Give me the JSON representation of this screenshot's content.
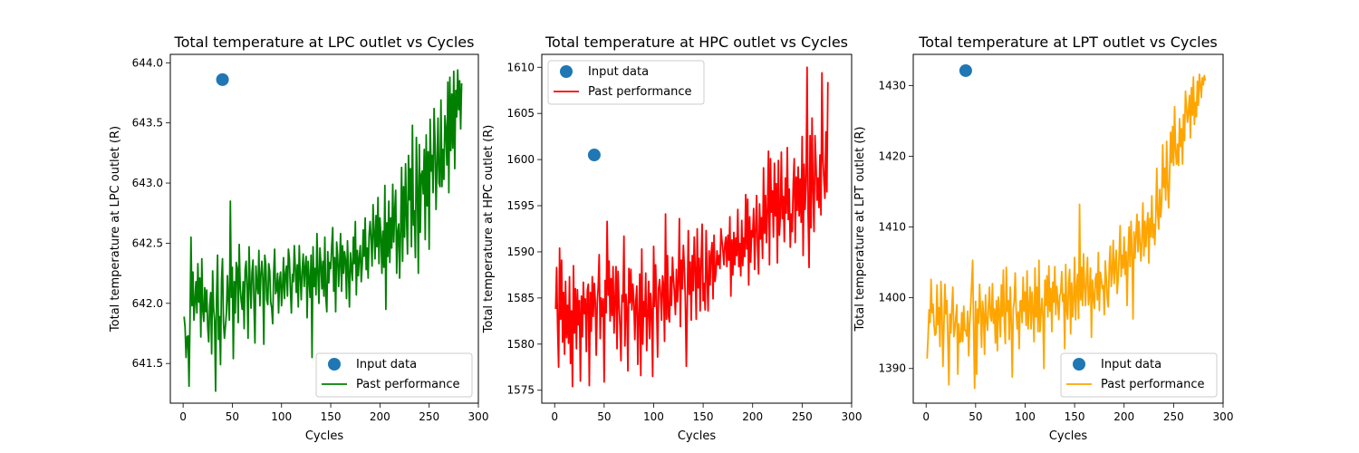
{
  "chart_data": [
    {
      "type": "line",
      "title": "Total temperature at LPC outlet vs Cycles",
      "xlabel": "Cycles",
      "ylabel": "Total temperature at LPC outlet (R)",
      "xlim": [
        -13,
        300
      ],
      "ylim": [
        641.17,
        644.07
      ],
      "xticks": [
        0,
        50,
        100,
        150,
        200,
        250,
        300
      ],
      "yticks": [
        641.5,
        642.0,
        642.5,
        643.0,
        643.5,
        644.0
      ],
      "ytick_labels": [
        "641.5",
        "642.0",
        "642.5",
        "643.0",
        "643.5",
        "644.0"
      ],
      "legend_position": "lower-right",
      "input_point": {
        "name": "Input data",
        "x": 40,
        "y": 643.86,
        "color": "#1f77b4"
      },
      "series": {
        "name": "Past performance",
        "color": "#008000",
        "x_start": 1,
        "x_step": 1,
        "values": [
          641.89,
          641.8,
          641.55,
          641.72,
          641.73,
          641.31,
          641.87,
          642.55,
          641.98,
          642.26,
          641.86,
          642.02,
          642.18,
          641.92,
          642.33,
          642.01,
          642.21,
          641.72,
          642.37,
          641.94,
          641.85,
          642.13,
          641.93,
          642.11,
          641.8,
          641.68,
          641.98,
          642.09,
          641.58,
          642.27,
          641.96,
          641.86,
          641.27,
          642.06,
          642.4,
          641.7,
          641.89,
          641.49,
          642.19,
          642.37,
          641.84,
          641.71,
          641.81,
          641.92,
          642.23,
          642.03,
          641.86,
          642.85,
          642.05,
          642.3,
          641.54,
          642.18,
          641.92,
          642.34,
          642.29,
          641.84,
          642.49,
          642.14,
          642.02,
          641.95,
          642.18,
          641.79,
          642.28,
          642.35,
          642.13,
          641.71,
          642.47,
          642.17,
          641.96,
          642.26,
          642.36,
          641.99,
          641.67,
          642.31,
          642.15,
          642.08,
          642.44,
          641.98,
          642.23,
          642.35,
          642.21,
          641.66,
          642.4,
          642.32,
          642.03,
          641.99,
          642.33,
          642.27,
          642.01,
          641.96,
          641.83,
          642.25,
          642.45,
          642.08,
          642.11,
          642.25,
          641.92,
          642.19,
          642.26,
          641.98,
          642.13,
          642.38,
          642.04,
          642.24,
          642.31,
          642.06,
          642.45,
          642.37,
          642.12,
          641.92,
          642.24,
          642.18,
          642.48,
          642.29,
          642.09,
          642.32,
          641.97,
          642.48,
          642.23,
          642.03,
          642.28,
          642.41,
          642.14,
          642.3,
          642.39,
          641.88,
          642.35,
          642.2,
          642.05,
          642.4,
          641.55,
          642.47,
          642.14,
          642.29,
          642.07,
          642.58,
          642.25,
          642.0,
          642.46,
          642.33,
          642.12,
          642.35,
          642.06,
          642.55,
          642.05,
          641.93,
          642.43,
          642.17,
          642.34,
          642.29,
          642.48,
          642.63,
          642.1,
          642.38,
          641.93,
          642.51,
          642.4,
          642.14,
          642.33,
          642.58,
          642.1,
          642.48,
          642.25,
          642.43,
          642.36,
          642.04,
          642.52,
          642.26,
          641.97,
          642.42,
          642.3,
          642.19,
          642.55,
          642.33,
          642.68,
          642.07,
          642.44,
          642.23,
          642.38,
          642.48,
          642.18,
          642.32,
          642.61,
          642.39,
          642.71,
          642.28,
          642.46,
          642.21,
          642.57,
          642.68,
          642.53,
          642.31,
          642.82,
          642.59,
          642.37,
          642.73,
          642.47,
          642.88,
          642.33,
          642.71,
          642.56,
          642.25,
          642.6,
          642.3,
          642.98,
          641.95,
          642.67,
          642.39,
          642.85,
          642.34,
          642.71,
          642.46,
          642.99,
          642.51,
          642.77,
          642.94,
          642.25,
          642.59,
          642.66,
          642.21,
          642.61,
          643.13,
          642.35,
          642.97,
          642.55,
          643.16,
          642.72,
          642.41,
          643.23,
          642.86,
          643.12,
          642.47,
          643.48,
          642.65,
          642.77,
          642.38,
          643.38,
          642.95,
          642.25,
          643.32,
          642.59,
          643.07,
          643.1,
          642.91,
          643.28,
          642.53,
          643.4,
          642.81,
          643.26,
          642.45,
          643.53,
          643.1,
          643.23,
          642.92,
          643.62,
          643.33,
          642.78,
          643.15,
          643.54,
          643.0,
          642.97,
          643.69,
          642.97,
          643.28,
          643.03,
          643.56,
          643.44,
          643.15,
          643.84,
          642.92,
          643.88,
          643.27,
          643.74,
          643.29,
          643.93,
          643.12,
          643.77,
          643.55,
          643.94,
          643.61,
          643.85,
          643.45,
          643.83
        ]
      }
    },
    {
      "type": "line",
      "title": "Total temperature at HPC outlet vs Cycles",
      "xlabel": "Cycles",
      "ylabel": "Total temperature at HPC outlet (R)",
      "xlim": [
        -13,
        300
      ],
      "ylim": [
        1573.6,
        1611.4
      ],
      "xticks": [
        0,
        50,
        100,
        150,
        200,
        250,
        300
      ],
      "yticks": [
        1575,
        1580,
        1585,
        1590,
        1595,
        1600,
        1605,
        1610
      ],
      "ytick_labels": [
        "1575",
        "1580",
        "1585",
        "1590",
        "1595",
        "1600",
        "1605",
        "1610"
      ],
      "legend_position": "upper-left",
      "input_point": {
        "name": "Input data",
        "x": 40,
        "y": 1600.5,
        "color": "#1f77b4"
      },
      "series": {
        "name": "Past performance",
        "color": "#ff0000",
        "x_start": 1,
        "x_step": 1,
        "values": [
          1583.8,
          1588.3,
          1581.9,
          1577.5,
          1590.4,
          1582.7,
          1589.1,
          1580.2,
          1585.6,
          1578.9,
          1586.8,
          1580.7,
          1584.2,
          1580.1,
          1587.3,
          1577.9,
          1583.6,
          1575.4,
          1588.5,
          1581.2,
          1586.0,
          1579.5,
          1585.9,
          1582.1,
          1584.7,
          1576.0,
          1585.2,
          1580.8,
          1586.7,
          1583.3,
          1584.9,
          1579.2,
          1585.8,
          1586.5,
          1575.5,
          1585.6,
          1581.4,
          1587.3,
          1583.0,
          1586.6,
          1584.8,
          1578.8,
          1584.4,
          1586.2,
          1589.7,
          1580.6,
          1585.0,
          1583.0,
          1584.9,
          1575.9,
          1586.9,
          1583.4,
          1593.3,
          1585.3,
          1589.0,
          1582.5,
          1587.1,
          1583.1,
          1588.4,
          1581.2,
          1584.8,
          1588.4,
          1579.5,
          1587.9,
          1584.4,
          1582.0,
          1578.2,
          1585.3,
          1584.6,
          1591.7,
          1579.8,
          1585.4,
          1583.8,
          1577.1,
          1588.2,
          1584.5,
          1588.1,
          1583.7,
          1586.5,
          1584.6,
          1580.5,
          1584.7,
          1586.3,
          1577.8,
          1583.0,
          1587.6,
          1576.6,
          1590.3,
          1580.0,
          1584.6,
          1583.0,
          1587.7,
          1579.3,
          1583.2,
          1586.8,
          1580.6,
          1585.5,
          1583.4,
          1576.5,
          1590.6,
          1584.1,
          1588.6,
          1584.1,
          1578.6,
          1586.0,
          1587.0,
          1585.3,
          1582.6,
          1587.4,
          1586.4,
          1580.3,
          1594.1,
          1582.7,
          1589.6,
          1583.0,
          1582.4,
          1587.3,
          1584.2,
          1589.4,
          1587.1,
          1585.6,
          1583.2,
          1588.1,
          1584.6,
          1586.8,
          1593.6,
          1581.9,
          1589.1,
          1586.0,
          1590.7,
          1588.4,
          1584.9,
          1577.6,
          1584.5,
          1592.3,
          1585.4,
          1588.9,
          1582.6,
          1589.6,
          1585.8,
          1591.6,
          1588.0,
          1582.7,
          1592.5,
          1586.1,
          1589.3,
          1583.6,
          1589.1,
          1593.0,
          1584.7,
          1586.6,
          1583.7,
          1592.3,
          1587.3,
          1583.6,
          1590.1,
          1586.4,
          1589.7,
          1591.0,
          1584.9,
          1591.8,
          1586.8,
          1587.8,
          1590.1,
          1588.6,
          1589.6,
          1588.2,
          1592.5,
          1591.2,
          1590.1,
          1588.6,
          1590.9,
          1591.6,
          1588.4,
          1591.8,
          1589.1,
          1593.8,
          1585.2,
          1591.3,
          1587.5,
          1592.1,
          1588.6,
          1591.5,
          1589.6,
          1594.6,
          1588.4,
          1590.9,
          1587.4,
          1593.4,
          1588.5,
          1591.5,
          1589.5,
          1596.2,
          1590.3,
          1595.7,
          1586.4,
          1593.8,
          1588.9,
          1592.3,
          1591.6,
          1594.7,
          1588.1,
          1592.3,
          1596.1,
          1590.5,
          1587.6,
          1595.2,
          1591.4,
          1593.7,
          1589.3,
          1599.1,
          1592.0,
          1596.1,
          1591.0,
          1594.6,
          1600.9,
          1588.6,
          1600.1,
          1594.3,
          1596.6,
          1591.6,
          1599.6,
          1593.9,
          1597.4,
          1588.8,
          1599.9,
          1591.8,
          1594.0,
          1600.8,
          1593.6,
          1596.0,
          1591.1,
          1598.0,
          1594.2,
          1601.3,
          1593.5,
          1596.8,
          1590.5,
          1594.1,
          1592.2,
          1597.3,
          1600.1,
          1591.0,
          1598.1,
          1594.5,
          1599.2,
          1593.9,
          1597.9,
          1593.2,
          1602.5,
          1589.6,
          1599.5,
          1594.6,
          1597.7,
          1610.0,
          1594.2,
          1588.3,
          1602.6,
          1592.6,
          1604.5,
          1596.6,
          1592.2,
          1602.6,
          1599.6,
          1595.6,
          1598.0,
          1594.8,
          1600.5,
          1594.0,
          1609.4,
          1600.1,
          1597.8,
          1595.8,
          1603.0,
          1596.5,
          1608.4
        ]
      }
    },
    {
      "type": "line",
      "title": "Total temperature at LPT outlet vs Cycles",
      "xlabel": "Cycles",
      "ylabel": "Total temperature at LPT outlet (R)",
      "xlim": [
        -13,
        300
      ],
      "ylim": [
        1385.1,
        1434.4
      ],
      "xticks": [
        0,
        50,
        100,
        150,
        200,
        250,
        300
      ],
      "yticks": [
        1390,
        1400,
        1410,
        1420,
        1430
      ],
      "ytick_labels": [
        "1390",
        "1400",
        "1410",
        "1420",
        "1430"
      ],
      "legend_position": "lower-right",
      "input_point": {
        "name": "Input data",
        "x": 40,
        "y": 1432.1,
        "color": "#1f77b4"
      },
      "series": {
        "name": "Past performance",
        "color": "#ffa500",
        "x_start": 1,
        "x_step": 1,
        "values": [
          1391.4,
          1394.5,
          1398.3,
          1396.5,
          1402.6,
          1397.9,
          1399.1,
          1396.2,
          1394.7,
          1395.0,
          1401.8,
          1396.2,
          1398.6,
          1393.1,
          1402.3,
          1398.1,
          1390.3,
          1396.1,
          1401.9,
          1397.7,
          1399.6,
          1394.1,
          1387.7,
          1397.7,
          1395.0,
          1398.6,
          1401.5,
          1394.5,
          1395.6,
          1397.3,
          1399.0,
          1389.2,
          1396.3,
          1393.7,
          1393.9,
          1397.9,
          1393.8,
          1398.8,
          1395.4,
          1395.4,
          1394.6,
          1398.1,
          1391.8,
          1396.3,
          1398.9,
          1402.0,
          1405.3,
          1395.5,
          1387.2,
          1399.5,
          1389.2,
          1398.4,
          1396.4,
          1401.9,
          1398.2,
          1393.0,
          1399.5,
          1397.7,
          1392.0,
          1400.4,
          1396.9,
          1395.4,
          1398.6,
          1401.5,
          1397.3,
          1396.7,
          1402.0,
          1396.4,
          1398.4,
          1393.6,
          1399.6,
          1392.5,
          1400.1,
          1398.1,
          1394.5,
          1401.8,
          1397.4,
          1403.9,
          1396.7,
          1393.5,
          1404.3,
          1398.1,
          1399.6,
          1394.1,
          1401.5,
          1396.8,
          1388.8,
          1398.4,
          1399.6,
          1403.5,
          1398.0,
          1395.6,
          1398.0,
          1392.8,
          1399.5,
          1399.6,
          1396.5,
          1402.9,
          1398.1,
          1400.8,
          1396.1,
          1403.8,
          1395.6,
          1398.6,
          1401.5,
          1395.6,
          1400.8,
          1398.2,
          1393.8,
          1404.2,
          1397.3,
          1401.5,
          1395.2,
          1405.3,
          1395.2,
          1397.6,
          1399.9,
          1397.4,
          1390.0,
          1402.5,
          1398.9,
          1403.1,
          1397.3,
          1404.5,
          1398.1,
          1401.3,
          1395.2,
          1402.2,
          1399.4,
          1404.4,
          1397.6,
          1401.6,
          1399.6,
          1396.9,
          1400.3,
          1400.7,
          1403.7,
          1399.5,
          1400.5,
          1392.8,
          1404.7,
          1398.3,
          1397.0,
          1402.2,
          1404.0,
          1394.9,
          1402.1,
          1397.3,
          1399.9,
          1405.7,
          1396.9,
          1401.4,
          1403.3,
          1397.1,
          1413.2,
          1399.7,
          1404.3,
          1398.9,
          1406.2,
          1401.7,
          1398.9,
          1402.6,
          1405.7,
          1399.0,
          1400.3,
          1404.2,
          1394.4,
          1402.5,
          1400.1,
          1398.5,
          1402.7,
          1403.4,
          1399.7,
          1406.4,
          1398.2,
          1403.6,
          1402.6,
          1401.3,
          1401.7,
          1397.6,
          1405.2,
          1402.7,
          1399.9,
          1398.7,
          1404.6,
          1407.3,
          1401.6,
          1403.7,
          1408.1,
          1402.0,
          1404.7,
          1406.7,
          1400.6,
          1402.8,
          1406.2,
          1410.2,
          1403.0,
          1406.0,
          1404.2,
          1408.6,
          1403.3,
          1406.5,
          1398.9,
          1405.9,
          1410.0,
          1404.4,
          1410.8,
          1406.3,
          1397.0,
          1409.3,
          1405.6,
          1408.9,
          1411.8,
          1406.5,
          1410.8,
          1407.7,
          1405.2,
          1408.5,
          1413.4,
          1405.9,
          1410.8,
          1407.2,
          1410.1,
          1412.0,
          1404.9,
          1411.2,
          1408.6,
          1414.4,
          1408.5,
          1410.4,
          1407.5,
          1411.5,
          1418.3,
          1411.8,
          1409.7,
          1415.3,
          1411.4,
          1413.6,
          1421.6,
          1415.6,
          1418.3,
          1413.8,
          1422.1,
          1416.0,
          1412.7,
          1417.4,
          1423.4,
          1419.1,
          1424.2,
          1418.7,
          1427.0,
          1420.8,
          1418.9,
          1421.7,
          1418.7,
          1425.3,
          1421.4,
          1423.9,
          1418.9,
          1425.9,
          1422.2,
          1429.2,
          1427.0,
          1424.8,
          1426.3,
          1428.6,
          1422.6,
          1429.7,
          1425.8,
          1431.2,
          1424.5,
          1427.6,
          1425.6,
          1430.6,
          1427.2,
          1431.6,
          1430.3,
          1428.3,
          1431.1,
          1430.1,
          1431.4,
          1430.7
        ]
      }
    }
  ]
}
